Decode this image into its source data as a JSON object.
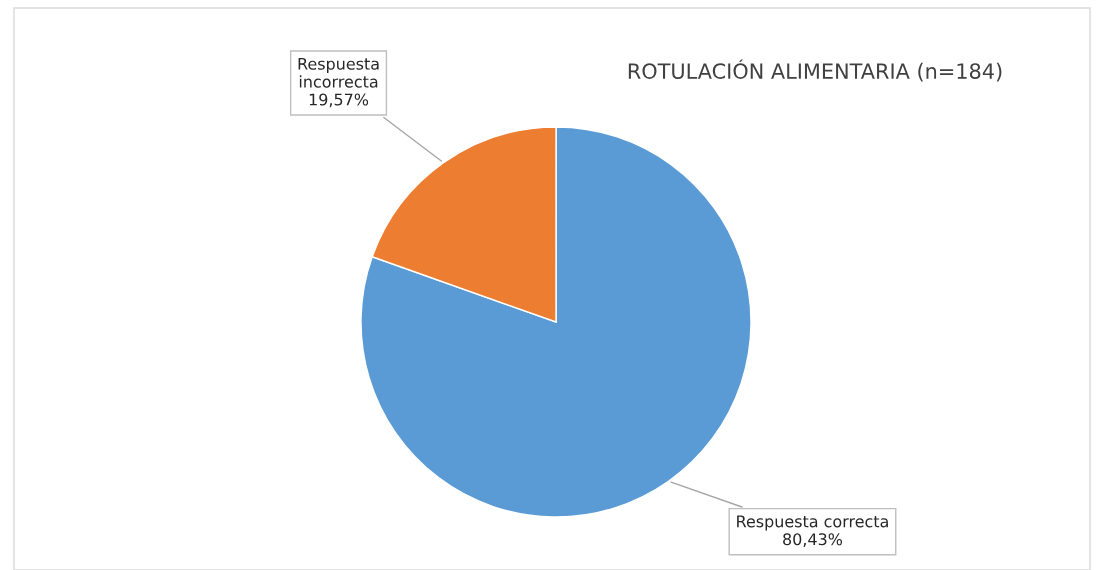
{
  "chart_data": {
    "type": "pie",
    "title": "ROTULACIÓN ALIMENTARIA (n=184)",
    "categories": [
      "Respuesta correcta",
      "Respuesta\nincorrecta"
    ],
    "values": [
      80.43,
      19.57
    ],
    "colors": [
      "#5b9bd5",
      "#ed7d31"
    ],
    "value_labels": [
      "80,43%",
      "19,57%"
    ],
    "legend": false
  }
}
